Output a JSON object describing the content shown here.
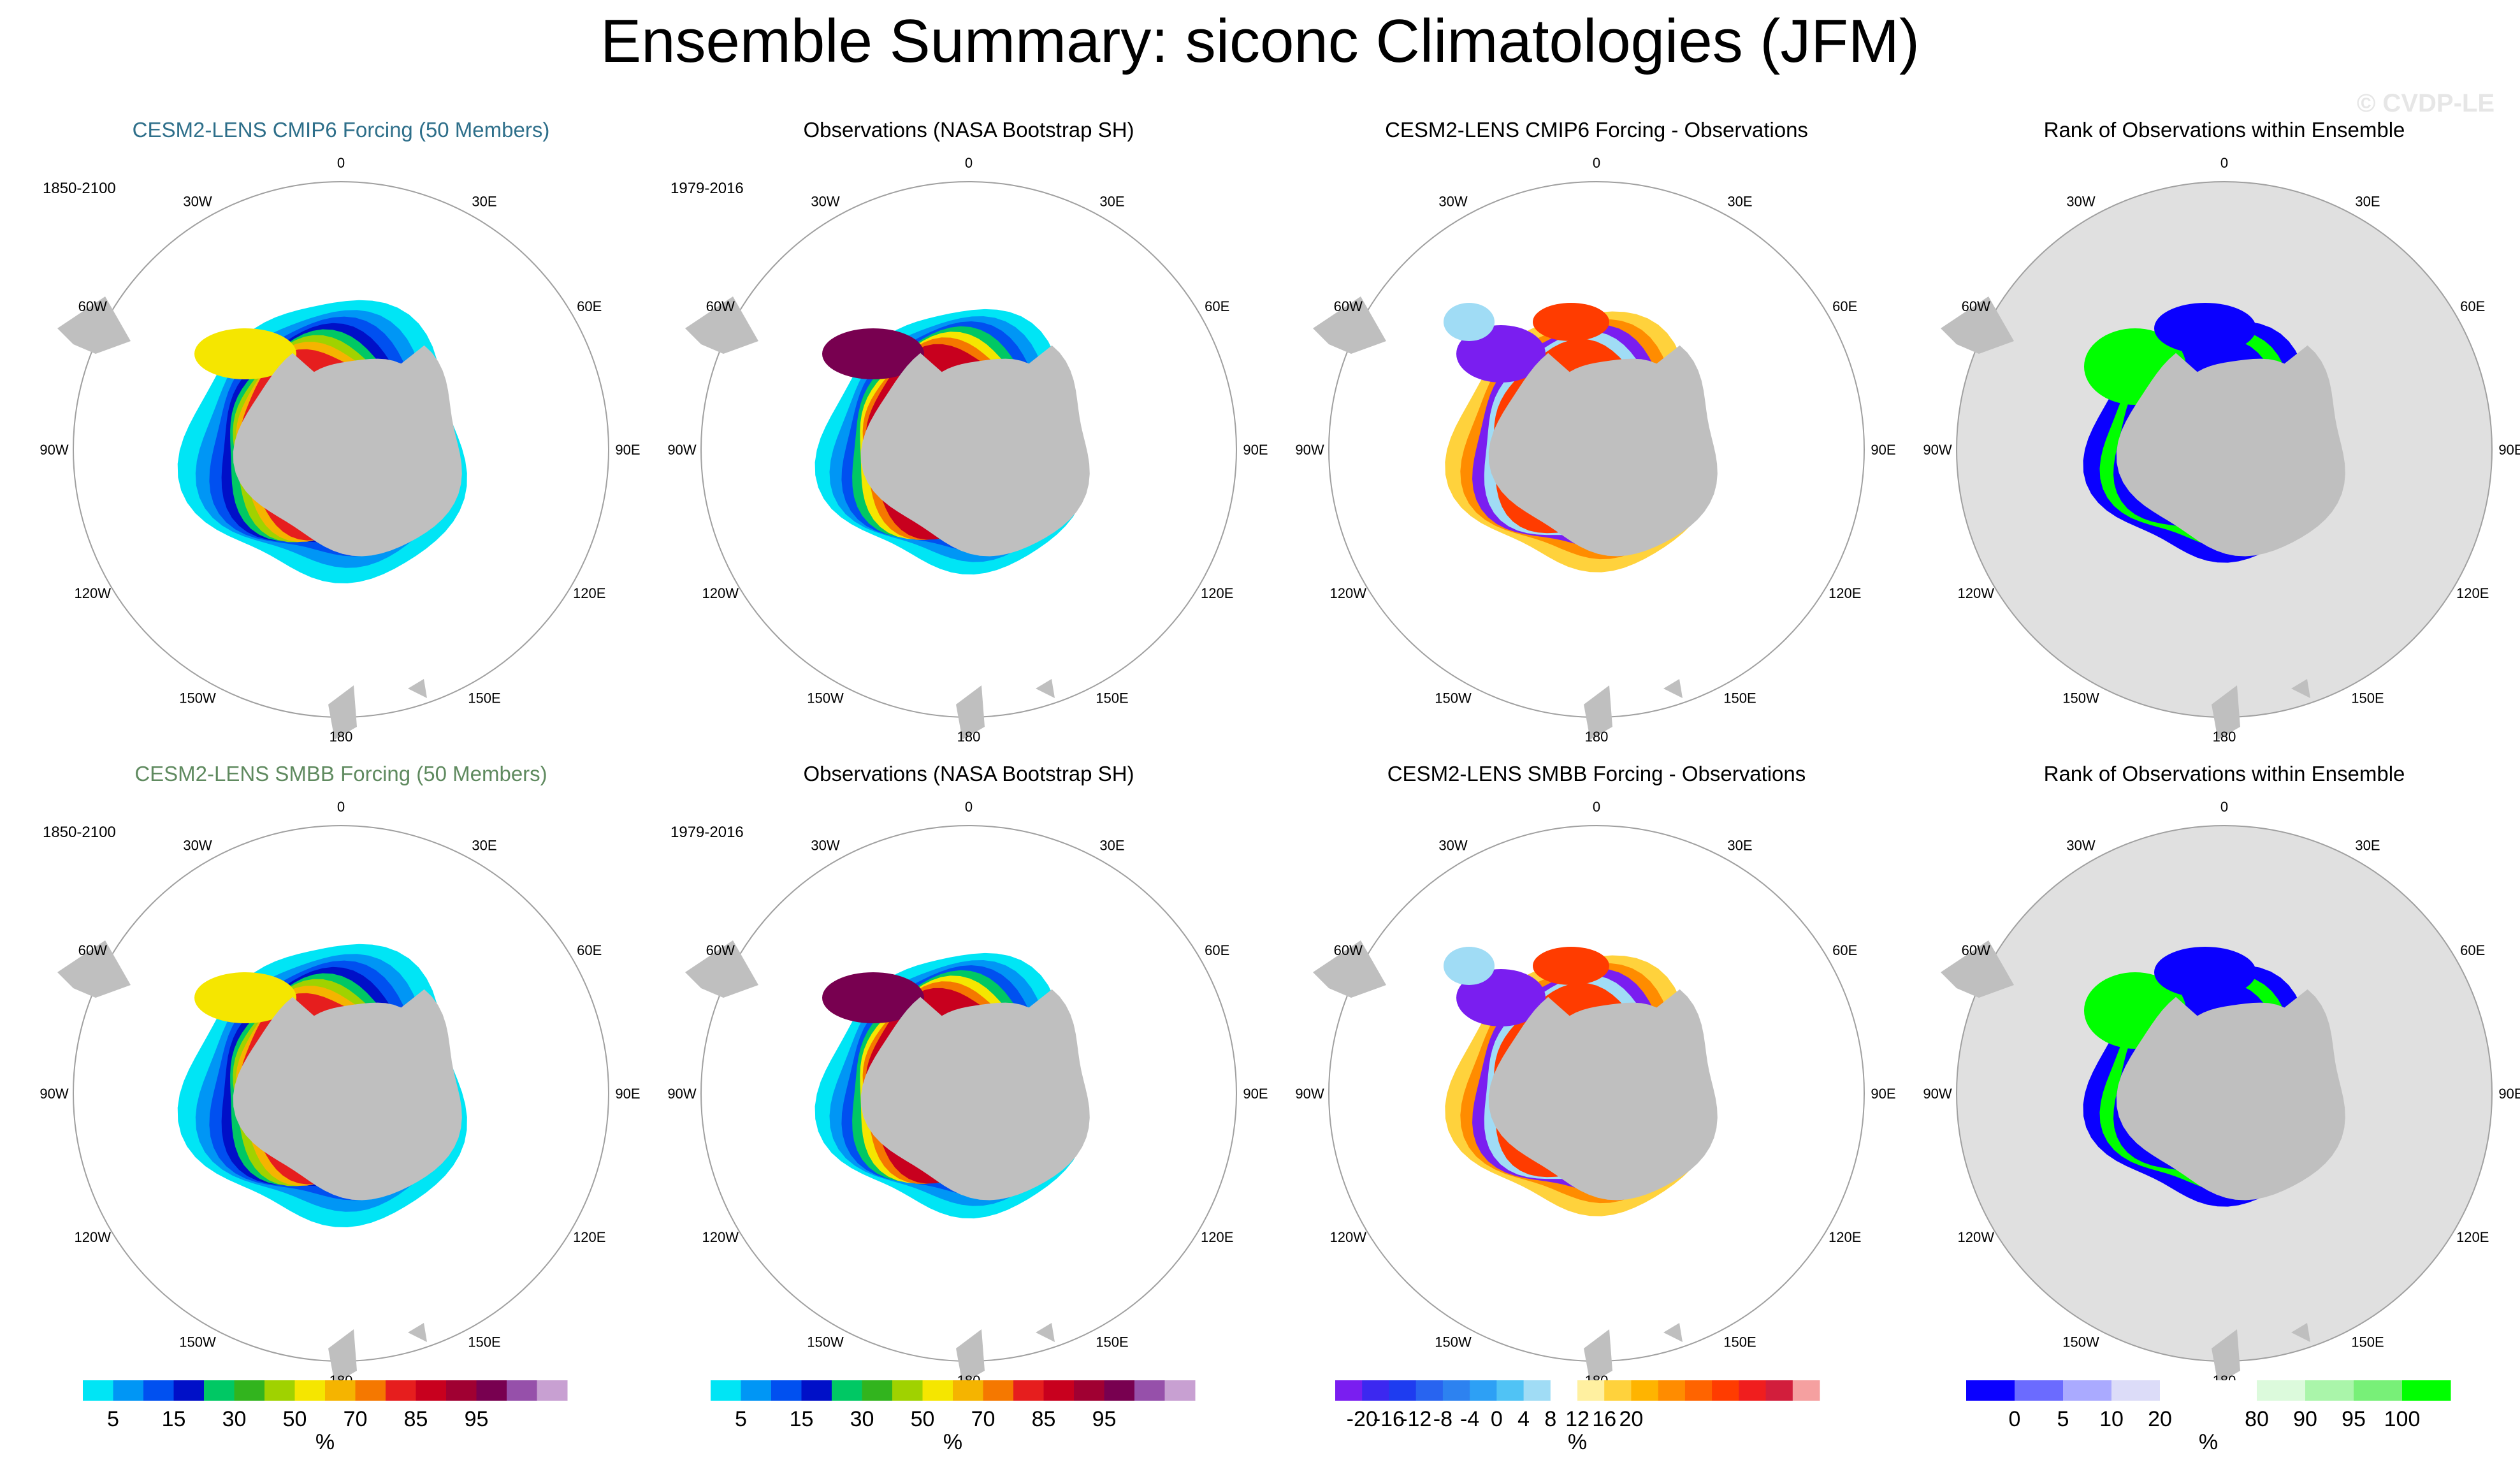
{
  "title": "Ensemble Summary: siconc Climatologies (JFM)",
  "watermark": "© CVDP-LE",
  "lon_labels": {
    "n0": "0",
    "n30e": "30E",
    "n60e": "60E",
    "e90": "90E",
    "s120e": "120E",
    "s150e": "150E",
    "s180": "180",
    "s150w": "150W",
    "s120w": "120W",
    "w90": "90W",
    "n60w": "60W",
    "n30w": "30W"
  },
  "panels": [
    {
      "title": "CESM2-LENS CMIP6 Forcing (50 Members)",
      "period": "1850-2100",
      "kind": "model",
      "title_color": "#2e6f8a"
    },
    {
      "title": "Observations (NASA Bootstrap SH)",
      "period": "1979-2016",
      "kind": "obs",
      "title_color": "#000000"
    },
    {
      "title": "CESM2-LENS CMIP6 Forcing - Observations",
      "period": "",
      "kind": "diff",
      "title_color": "#000000"
    },
    {
      "title": "Rank of Observations within Ensemble",
      "period": "",
      "kind": "rank",
      "title_color": "#000000"
    },
    {
      "title": "CESM2-LENS SMBB Forcing (50 Members)",
      "period": "1850-2100",
      "kind": "model",
      "title_color": "#5f8a5f"
    },
    {
      "title": "Observations (NASA Bootstrap SH)",
      "period": "1979-2016",
      "kind": "obs",
      "title_color": "#000000"
    },
    {
      "title": "CESM2-LENS SMBB Forcing - Observations",
      "period": "",
      "kind": "diff",
      "title_color": "#000000"
    },
    {
      "title": "Rank of Observations within Ensemble",
      "period": "",
      "kind": "rank",
      "title_color": "#000000"
    }
  ],
  "colorbars": [
    {
      "unit": "%",
      "colors": [
        "#00e5f5",
        "#0096f5",
        "#0050f0",
        "#0010c8",
        "#00c864",
        "#32b41e",
        "#a0d200",
        "#f5e600",
        "#f5b400",
        "#f57800",
        "#e61e1e",
        "#c8001e",
        "#a00032",
        "#780050",
        "#9650aa",
        "#c8a0d2"
      ],
      "ticks": [
        "5",
        "15",
        "30",
        "50",
        "70",
        "85",
        "95"
      ],
      "tick_boundaries": [
        1,
        3,
        5,
        7,
        9,
        11,
        13
      ]
    },
    {
      "unit": "%",
      "colors": [
        "#00e5f5",
        "#0096f5",
        "#0050f0",
        "#0010c8",
        "#00c864",
        "#32b41e",
        "#a0d200",
        "#f5e600",
        "#f5b400",
        "#f57800",
        "#e61e1e",
        "#c8001e",
        "#a00032",
        "#780050",
        "#9650aa",
        "#c8a0d2"
      ],
      "ticks": [
        "5",
        "15",
        "30",
        "50",
        "70",
        "85",
        "95"
      ],
      "tick_boundaries": [
        1,
        3,
        5,
        7,
        9,
        11,
        13
      ]
    },
    {
      "unit": "%",
      "colors": [
        "#7a1ef0",
        "#3c28f0",
        "#1e3cf0",
        "#2864f0",
        "#2d82f0",
        "#2da0f5",
        "#50c3f5",
        "#a0dcf5",
        "#ffffff",
        "#fff0a0",
        "#ffd23c",
        "#ffb400",
        "#ff8c00",
        "#ff6400",
        "#ff3c00",
        "#f01e1e",
        "#d21e3c",
        "#f5a0a0"
      ],
      "ticks": [
        "-20",
        "-16",
        "-12",
        "-8",
        "-4",
        "0",
        "4",
        "8",
        "12",
        "16",
        "20"
      ],
      "tick_boundaries": [
        1,
        2,
        3,
        4,
        5,
        6,
        7,
        8,
        9,
        10,
        11
      ]
    },
    {
      "unit": "%",
      "colors": [
        "#0a00ff",
        "#6b6bff",
        "#aaaaff",
        "#dcdcf8",
        "#ffffff",
        "#ffffff",
        "#dcfadc",
        "#aaf5aa",
        "#78f078",
        "#00ff00"
      ],
      "ticks": [
        "0",
        "5",
        "10",
        "20",
        "80",
        "90",
        "95",
        "100"
      ],
      "tick_boundaries": [
        1,
        2,
        3,
        4,
        6,
        7,
        8,
        9
      ]
    }
  ],
  "colors": {
    "land": "#bfbfbf",
    "rank_background": "#e0e0e0",
    "grid_circle": "#a0a0a0"
  }
}
